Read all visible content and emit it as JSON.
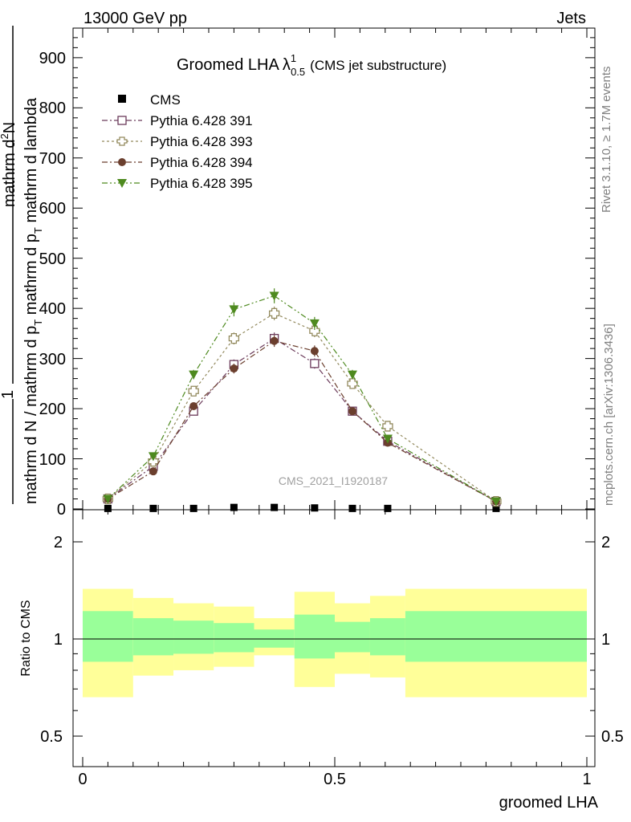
{
  "header": {
    "energy_label": "13000 GeV pp",
    "process_label": "Jets",
    "title_main": "Groomed LHA",
    "title_symbol": "λ",
    "title_sup": "1",
    "title_sub": "0.5",
    "title_suffix": "(CMS jet substructure)"
  },
  "side_labels": {
    "rivet": "Rivet 3.1.10, ≥ 1.7M events",
    "mcplots": "mcplots.cern.ch [arXiv:1306.3436]"
  },
  "watermark": "CMS_2021_I1920187",
  "y_axis": {
    "numerator_one": "1",
    "numerator_rest": "mathrm d",
    "numerator_sup": "2",
    "numerator_end": "N",
    "denominator_a": "mathrm d N / mathrm d p",
    "denominator_a_sub": "T",
    "denominator_b": " mathrm d p",
    "denominator_b_sub": "T",
    "denominator_c": " mathrm d lambda"
  },
  "ratio_ylabel": "Ratio to CMS",
  "x_axis_label": "groomed LHA",
  "legend": {
    "cms": "CMS",
    "s391": "Pythia 6.428 391",
    "s393": "Pythia 6.428 393",
    "s394": "Pythia 6.428 394",
    "s395": "Pythia 6.428 395"
  },
  "tick_labels": {
    "main_y": [
      "0",
      "100",
      "200",
      "300",
      "400",
      "500",
      "600",
      "700",
      "800",
      "900"
    ],
    "ratio_y": [
      "0.5",
      "1",
      "2"
    ],
    "x": [
      "0",
      "0.5",
      "1"
    ]
  },
  "chart_data": {
    "type": "line",
    "xlabel": "groomed LHA",
    "xlim": [
      0,
      1
    ],
    "main_ylim": [
      0,
      960
    ],
    "ratio_ylim": [
      0.38,
      2.4
    ],
    "ratio_scale": "log",
    "x": [
      0.05,
      0.14,
      0.22,
      0.3,
      0.38,
      0.46,
      0.535,
      0.605,
      0.82
    ],
    "series": [
      {
        "name": "CMS",
        "color": "#000000",
        "marker": "square-filled",
        "values": [
          1,
          1,
          1,
          3,
          3,
          2,
          1,
          1,
          1
        ]
      },
      {
        "name": "Pythia 6.428 391",
        "color": "#6b3a5a",
        "marker": "square-open",
        "values": [
          20,
          85,
          195,
          288,
          340,
          290,
          195,
          135,
          15
        ]
      },
      {
        "name": "Pythia 6.428 393",
        "color": "#938a5e",
        "marker": "cross-open",
        "values": [
          20,
          95,
          235,
          340,
          390,
          355,
          250,
          165,
          15
        ]
      },
      {
        "name": "Pythia 6.428 394",
        "color": "#6b3f2e",
        "marker": "circle-filled",
        "values": [
          20,
          75,
          205,
          280,
          335,
          315,
          195,
          132,
          15
        ]
      },
      {
        "name": "Pythia 6.428 395",
        "color": "#4e8a1f",
        "marker": "triangle-down-filled",
        "values": [
          20,
          105,
          268,
          398,
          425,
          370,
          268,
          140,
          15
        ]
      }
    ],
    "ratio_bands": [
      {
        "xlo": 0.0,
        "xhi": 0.1,
        "yellow": [
          0.66,
          1.43
        ],
        "green": [
          0.85,
          1.22
        ]
      },
      {
        "xlo": 0.1,
        "xhi": 0.18,
        "yellow": [
          0.77,
          1.34
        ],
        "green": [
          0.89,
          1.16
        ]
      },
      {
        "xlo": 0.18,
        "xhi": 0.26,
        "yellow": [
          0.8,
          1.29
        ],
        "green": [
          0.9,
          1.14
        ]
      },
      {
        "xlo": 0.26,
        "xhi": 0.34,
        "yellow": [
          0.82,
          1.26
        ],
        "green": [
          0.91,
          1.12
        ]
      },
      {
        "xlo": 0.34,
        "xhi": 0.42,
        "yellow": [
          0.89,
          1.16
        ],
        "green": [
          0.94,
          1.07
        ]
      },
      {
        "xlo": 0.42,
        "xhi": 0.5,
        "yellow": [
          0.71,
          1.4
        ],
        "green": [
          0.87,
          1.19
        ]
      },
      {
        "xlo": 0.5,
        "xhi": 0.57,
        "yellow": [
          0.78,
          1.29
        ],
        "green": [
          0.91,
          1.13
        ]
      },
      {
        "xlo": 0.57,
        "xhi": 0.64,
        "yellow": [
          0.76,
          1.36
        ],
        "green": [
          0.89,
          1.16
        ]
      },
      {
        "xlo": 0.64,
        "xhi": 1.0,
        "yellow": [
          0.66,
          1.43
        ],
        "green": [
          0.85,
          1.22
        ]
      }
    ],
    "band_colors": {
      "yellow": "#ffff99",
      "green": "#99ff99"
    }
  }
}
